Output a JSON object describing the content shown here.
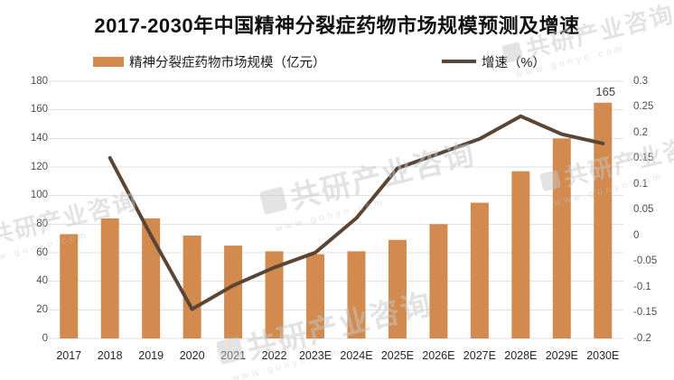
{
  "title": "2017-2030年中国精神分裂症药物市场规模预测及增速",
  "watermark": {
    "text": "共研产业咨询",
    "url": "www.gonyn.com"
  },
  "colors": {
    "bar": "#D28A4F",
    "line": "#5B4636",
    "grid": "#DFDFDF",
    "axis_text": "#4d4d4d",
    "bar_label_text": "#404040"
  },
  "chart_data": {
    "type": "bar+line",
    "title": "2017-2030年中国精神分裂症药物市场规模预测及增速",
    "categories": [
      "2017",
      "2018",
      "2019",
      "2020",
      "2021",
      "2022",
      "2023E",
      "2024E",
      "2025E",
      "2026E",
      "2027E",
      "2028E",
      "2029E",
      "2030E"
    ],
    "series": [
      {
        "name": "精神分裂症药物市场规模（亿元）",
        "type": "bar",
        "axis": "left",
        "color": "#D28A4F",
        "values": [
          73,
          84,
          84,
          72,
          65,
          61,
          59,
          61,
          69,
          80,
          95,
          117,
          140,
          165
        ],
        "point_labels": [
          null,
          null,
          null,
          null,
          null,
          null,
          null,
          null,
          null,
          null,
          null,
          null,
          null,
          "165"
        ]
      },
      {
        "name": "增速（%）",
        "type": "line",
        "axis": "right",
        "color": "#5B4636",
        "values": [
          null,
          0.151,
          0.0,
          -0.143,
          -0.097,
          -0.062,
          -0.033,
          0.034,
          0.131,
          0.159,
          0.188,
          0.232,
          0.197,
          0.179
        ]
      }
    ],
    "left_axis": {
      "min": 0,
      "max": 180,
      "step": 20,
      "ticks_top_to_bottom": [
        180,
        160,
        140,
        120,
        100,
        80,
        60,
        40,
        20,
        0
      ]
    },
    "right_axis": {
      "min": -0.2,
      "max": 0.3,
      "step": 0.05,
      "ticks_top_to_bottom": [
        "0.3",
        "0.25",
        "0.2",
        "0.15",
        "0.1",
        "0.05",
        "0",
        "-0.05",
        "-0.1",
        "-0.15",
        "-0.2"
      ]
    },
    "grid": true,
    "legend_position": "top"
  }
}
